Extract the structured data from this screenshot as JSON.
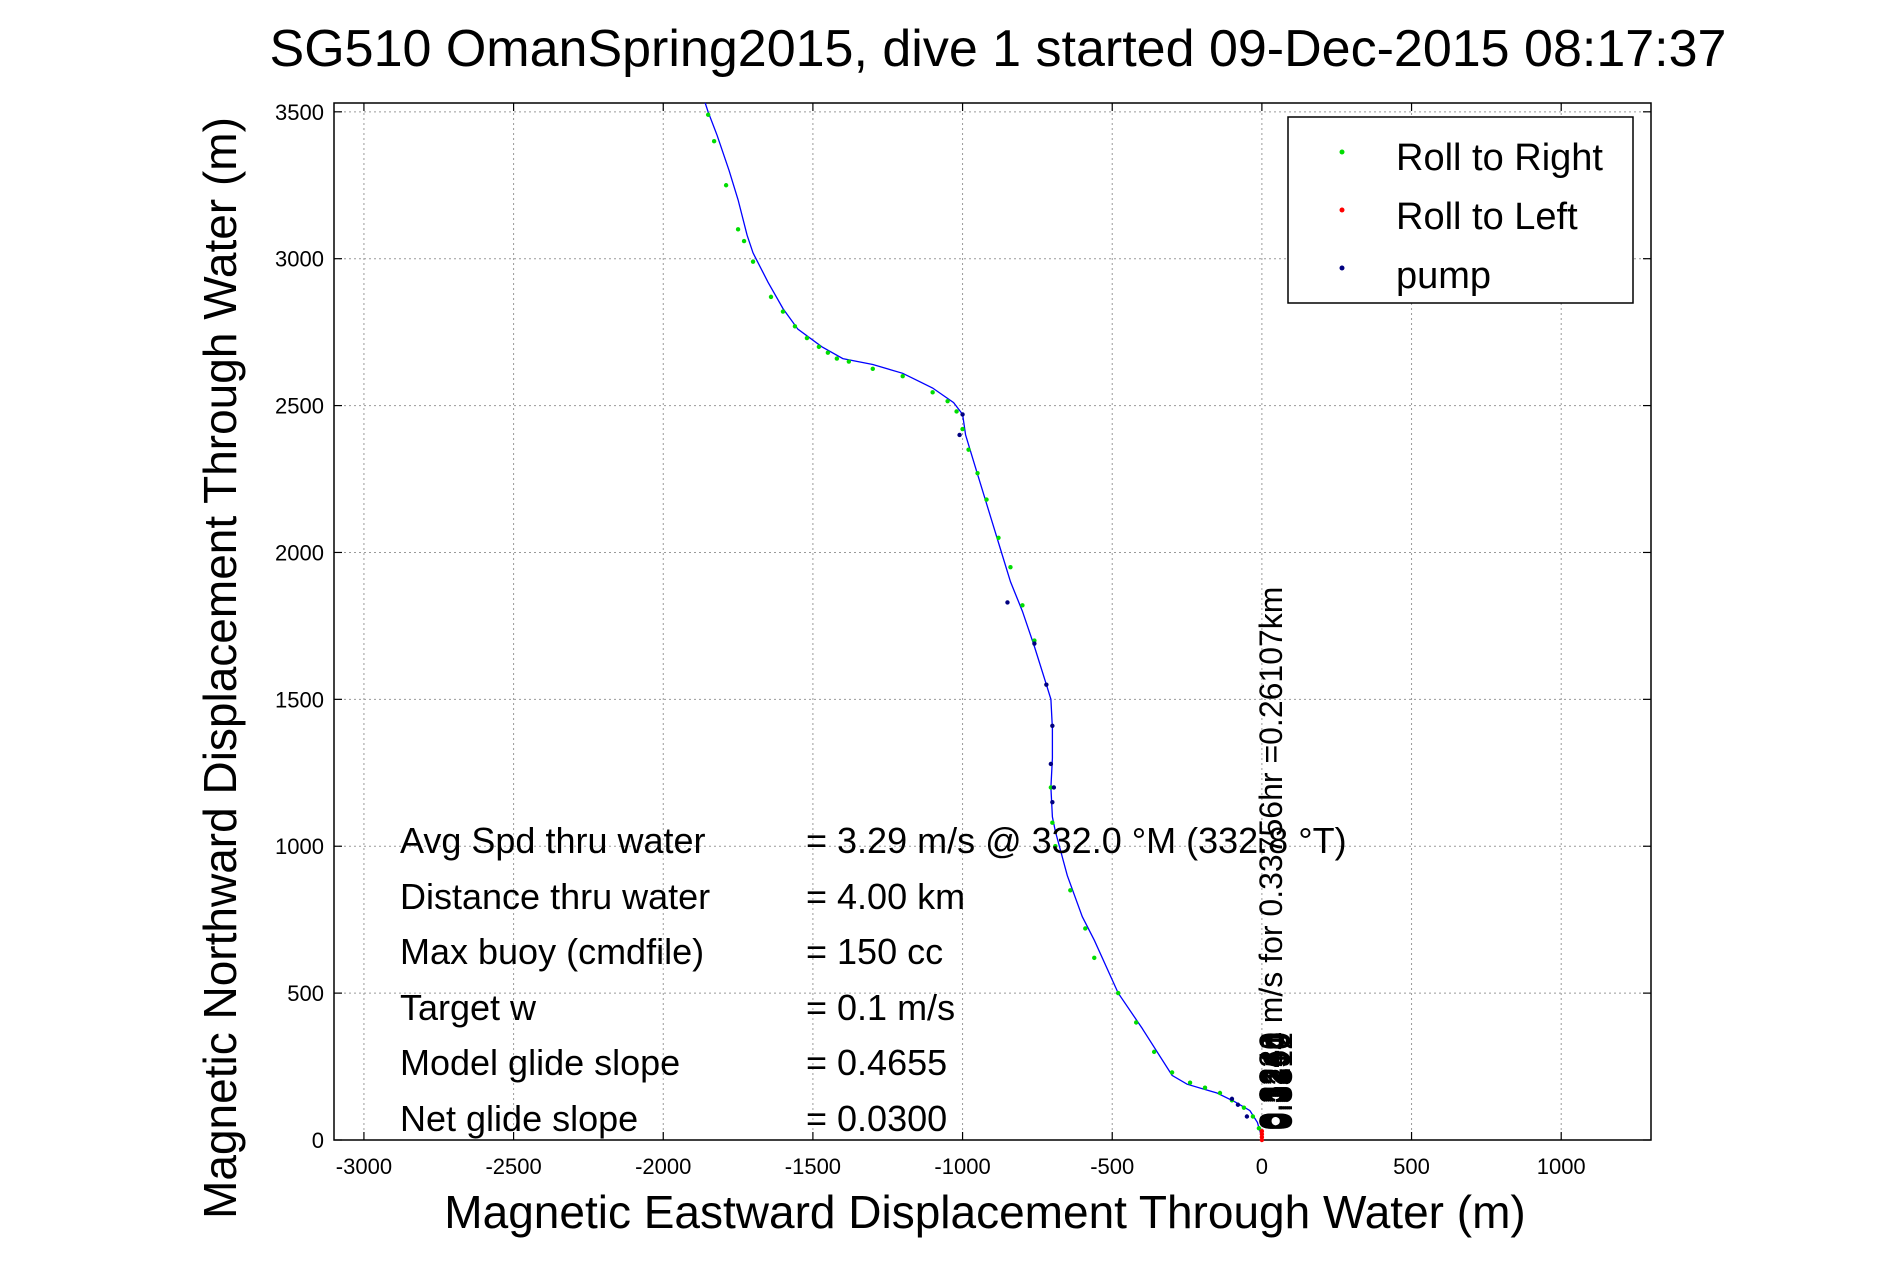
{
  "chart_data": {
    "type": "line",
    "title": "SG510 OmanSpring2015, dive 1 started 09-Dec-2015 08:17:37",
    "xlabel": "Magnetic Eastward Displacement Through Water (m)",
    "ylabel": "Magnetic Northward Displacement Through Water (m)",
    "xlim": [
      -3100,
      1300
    ],
    "ylim": [
      0,
      3530
    ],
    "xticks": [
      -3000,
      -2500,
      -2000,
      -1500,
      -1000,
      -500,
      0,
      500,
      1000
    ],
    "yticks": [
      0,
      500,
      1000,
      1500,
      2000,
      2500,
      3000,
      3500
    ],
    "grid": true,
    "legend_position": "top-right",
    "legend": [
      {
        "label": "Roll to Right",
        "color": "#00dd00"
      },
      {
        "label": "Roll to Left",
        "color": "#ff0000"
      },
      {
        "label": "pump",
        "color": "#000080"
      }
    ],
    "track_color": "#0000ff",
    "track": {
      "x": [
        0,
        -5,
        -15,
        -40,
        -90,
        -150,
        -200,
        -250,
        -300,
        -400,
        -480,
        -560,
        -600,
        -650,
        -690,
        -700,
        -705,
        -700,
        -700,
        -705,
        -720,
        -760,
        -800,
        -840,
        -870,
        -900,
        -930,
        -960,
        -990,
        -1000,
        -1030,
        -1100,
        -1200,
        -1300,
        -1400,
        -1470,
        -1550,
        -1600,
        -1650,
        -1700,
        -1720,
        -1750,
        -1780,
        -1820,
        -1850,
        -1860
      ],
      "y": [
        0,
        25,
        60,
        100,
        130,
        160,
        175,
        190,
        220,
        380,
        500,
        680,
        760,
        900,
        1050,
        1100,
        1200,
        1300,
        1400,
        1500,
        1550,
        1680,
        1800,
        1900,
        2000,
        2100,
        2200,
        2300,
        2400,
        2470,
        2510,
        2560,
        2610,
        2640,
        2660,
        2700,
        2760,
        2830,
        2920,
        3020,
        3080,
        3200,
        3300,
        3420,
        3500,
        3530
      ]
    },
    "roll_right": {
      "x": [
        -10,
        -30,
        -60,
        -100,
        -140,
        -190,
        -240,
        -300,
        -360,
        -420,
        -480,
        -560,
        -590,
        -640,
        -690,
        -700,
        -705,
        -760,
        -800,
        -840,
        -880,
        -920,
        -950,
        -980,
        -1000,
        -1020,
        -1050,
        -1100,
        -1200,
        -1300,
        -1380,
        -1420,
        -1450,
        -1480,
        -1520,
        -1560,
        -1600,
        -1640,
        -1700,
        -1730,
        -1750,
        -1790,
        -1830,
        -1850
      ],
      "y": [
        40,
        80,
        110,
        135,
        160,
        178,
        195,
        230,
        300,
        400,
        500,
        620,
        720,
        850,
        1000,
        1080,
        1200,
        1700,
        1820,
        1950,
        2050,
        2180,
        2270,
        2350,
        2420,
        2480,
        2515,
        2545,
        2600,
        2625,
        2650,
        2660,
        2680,
        2700,
        2730,
        2770,
        2820,
        2870,
        2990,
        3060,
        3100,
        3250,
        3400,
        3490
      ]
    },
    "roll_left": {
      "x": [
        0,
        0,
        0,
        0
      ],
      "y": [
        0,
        10,
        20,
        30
      ]
    },
    "pump": {
      "x": [
        -50,
        -80,
        -100,
        -700,
        -705,
        -700,
        -760,
        -720,
        -695,
        -850,
        -1010,
        -1000
      ],
      "y": [
        80,
        120,
        140,
        1150,
        1280,
        1410,
        1690,
        1550,
        1200,
        1830,
        2400,
        2470
      ]
    },
    "annotations": [
      {
        "label": "Avg Spd thru water",
        "value": "=  3.29 m/s @  332.0 °M (332.8 °T)"
      },
      {
        "label": "Distance thru water",
        "value": "=  4.00 km"
      },
      {
        "label": "Max buoy (cmdfile)",
        "value": "= 150 cc"
      },
      {
        "label": "Target w",
        "value": "= 0.1 m/s"
      },
      {
        "label": "Model glide slope",
        "value": "= 0.4655"
      },
      {
        "label": "Net glide slope",
        "value": "= 0.0300"
      }
    ],
    "current_label": "0.3240 m/s for 0.33756hr =0.26107km",
    "current_overlap_labels": [
      "0.3221",
      "0.3245",
      "0.3264",
      "0.3250",
      "0.3190",
      "0.3312"
    ]
  }
}
